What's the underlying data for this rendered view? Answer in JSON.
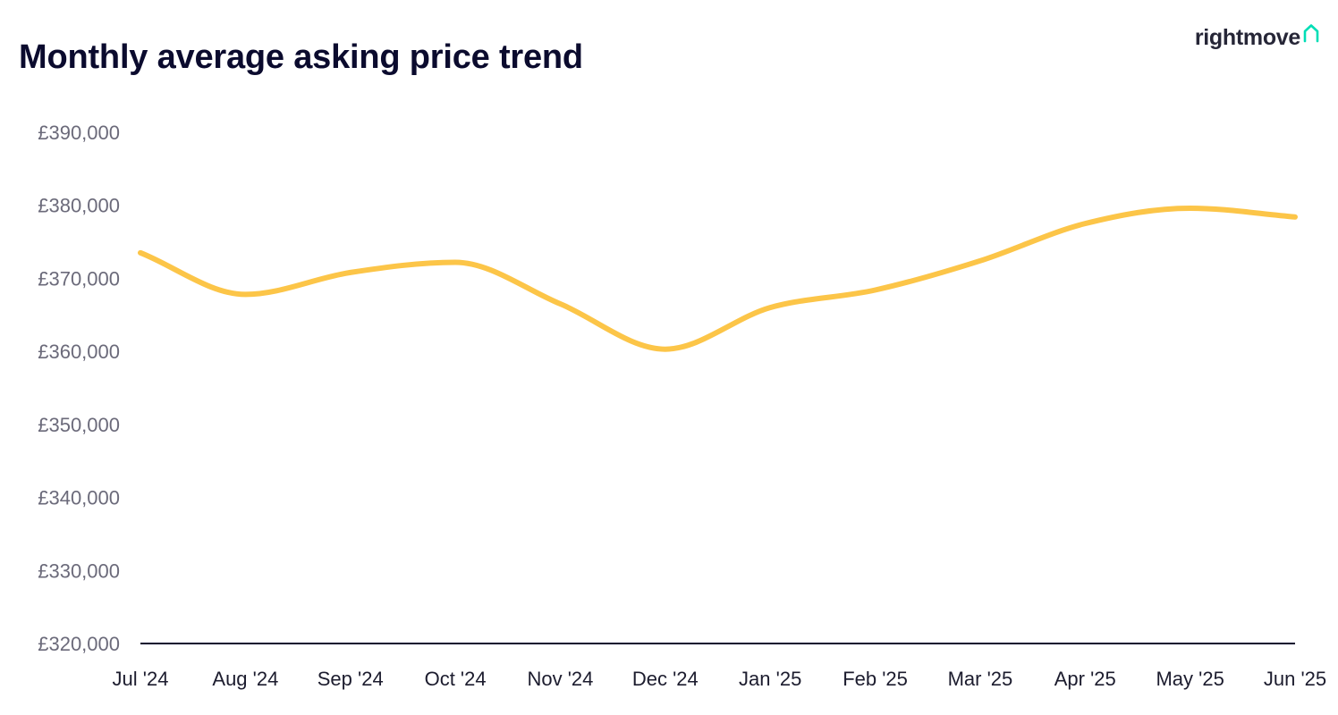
{
  "brand": {
    "name": "rightmove",
    "icon": "house-outline-icon",
    "icon_color": "#00deb6"
  },
  "chart_data": {
    "type": "line",
    "title": "Monthly average asking price trend",
    "xlabel": "",
    "ylabel": "",
    "categories": [
      "Jul '24",
      "Aug '24",
      "Sep '24",
      "Oct '24",
      "Nov '24",
      "Dec '24",
      "Jan '25",
      "Feb '25",
      "Mar '25",
      "Apr '25",
      "May '25",
      "Jun '25"
    ],
    "series": [
      {
        "values": [
          373500,
          367800,
          370800,
          372200,
          366500,
          360300,
          366000,
          368400,
          372400,
          377500,
          379600,
          378400
        ]
      }
    ],
    "ylim": [
      320000,
      390000
    ],
    "y_ticks": [
      320000,
      330000,
      340000,
      350000,
      360000,
      370000,
      380000,
      390000
    ],
    "y_tick_labels": [
      "£320,000",
      "£330,000",
      "£340,000",
      "£350,000",
      "£360,000",
      "£370,000",
      "£380,000",
      "£390,000"
    ],
    "line_color": "#fcc548",
    "axis_color": "#0b0b2e",
    "grid": false,
    "legend": "none"
  }
}
